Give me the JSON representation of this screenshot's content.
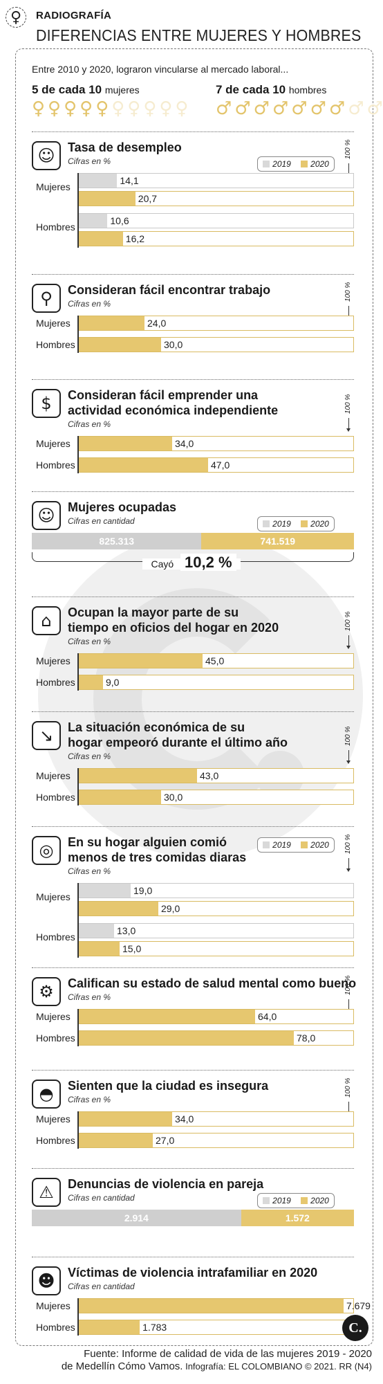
{
  "header": {
    "kicker": "RADIOGRAFÍA",
    "title": "DIFERENCIAS ENTRE MUJERES Y HOMBRES"
  },
  "intro": {
    "text": "Entre 2010 y 2020, lograron vincularse al mercado laboral...",
    "women": {
      "count_text": "5 de cada 10",
      "label": "mujeres",
      "filled": 5,
      "total": 10
    },
    "men": {
      "count_text": "7 de cada 10",
      "label": "hombres",
      "filled": 7,
      "total": 10
    }
  },
  "legend": {
    "y2019": "2019",
    "y2020": "2020"
  },
  "hundred_label": "100 %",
  "colors": {
    "y2019": "#d9d9d9",
    "y2020": "#e6c76f",
    "track2020": "#d9bb62",
    "ocupadas2019": "#cfcfcf",
    "ocupadas2020": "#e6c76f"
  },
  "row_labels": {
    "women": "Mujeres",
    "men": "Hombres"
  },
  "chart_data": [
    {
      "type": "bar",
      "title": "Tasa de desempleo",
      "subtitle": "Cifras en %",
      "icon": "unemployed-person-icon",
      "legend": true,
      "categories": [
        "Mujeres",
        "Hombres"
      ],
      "series": [
        {
          "name": "2019",
          "values": [
            14.1,
            10.6
          ],
          "labels": [
            "14,1",
            "10,6"
          ]
        },
        {
          "name": "2020",
          "values": [
            20.7,
            16.2
          ],
          "labels": [
            "20,7",
            "16,2"
          ]
        }
      ],
      "xlim": [
        0,
        100
      ]
    },
    {
      "type": "bar",
      "title": "Consideran fácil encontrar trabajo",
      "subtitle": "Cifras en %",
      "icon": "magnifier-search-icon",
      "categories": [
        "Mujeres",
        "Hombres"
      ],
      "values": [
        24.0,
        30.0
      ],
      "labels": [
        "24,0",
        "30,0"
      ],
      "xlim": [
        0,
        100
      ]
    },
    {
      "type": "bar",
      "title": "Consideran fácil emprender una",
      "title2": "actividad económica independiente",
      "subtitle": "Cifras en %",
      "icon": "money-network-icon",
      "categories": [
        "Mujeres",
        "Hombres"
      ],
      "values": [
        34.0,
        47.0
      ],
      "labels": [
        "34,0",
        "47,0"
      ],
      "xlim": [
        0,
        100
      ]
    },
    {
      "type": "bar",
      "title": "Mujeres ocupadas",
      "subtitle": "Cifras en cantidad",
      "icon": "employed-woman-icon",
      "legend": true,
      "categories": [
        "2019",
        "2020"
      ],
      "values": [
        825313,
        741519
      ],
      "labels": [
        "825.313",
        "741.519"
      ],
      "annotation_prefix": "Cayó",
      "annotation_value": "10,2 %"
    },
    {
      "type": "bar",
      "title": "Ocupan la mayor parte de su",
      "title2": "tiempo en oficios del hogar en 2020",
      "subtitle": "Cifras en %",
      "icon": "broom-icon",
      "categories": [
        "Mujeres",
        "Hombres"
      ],
      "values": [
        45.0,
        9.0
      ],
      "labels": [
        "45,0",
        "9,0"
      ],
      "xlim": [
        0,
        100
      ]
    },
    {
      "type": "bar",
      "title": "La situación económica de su",
      "title2": "hogar empeoró durante el último año",
      "subtitle": "Cifras en %",
      "icon": "declining-trend-icon",
      "categories": [
        "Mujeres",
        "Hombres"
      ],
      "values": [
        43.0,
        30.0
      ],
      "labels": [
        "43,0",
        "30,0"
      ],
      "xlim": [
        0,
        100
      ]
    },
    {
      "type": "bar",
      "title": "En su hogar alguien comió",
      "title2": "menos de tres comidas diaras",
      "subtitle": "Cifras en %",
      "icon": "meal-plate-icon",
      "legend": true,
      "categories": [
        "Mujeres",
        "Hombres"
      ],
      "series": [
        {
          "name": "2019",
          "values": [
            19.0,
            13.0
          ],
          "labels": [
            "19,0",
            "13,0"
          ]
        },
        {
          "name": "2020",
          "values": [
            29.0,
            15.0
          ],
          "labels": [
            "29,0",
            "15,0"
          ]
        }
      ],
      "xlim": [
        0,
        100
      ]
    },
    {
      "type": "bar",
      "title": "Califican su estado de salud mental como bueno",
      "subtitle": "Cifras en %",
      "icon": "head-gear-icon",
      "categories": [
        "Mujeres",
        "Hombres"
      ],
      "values": [
        64.0,
        78.0
      ],
      "labels": [
        "64,0",
        "78,0"
      ],
      "xlim": [
        0,
        100
      ]
    },
    {
      "type": "bar",
      "title": "Sienten que la ciudad es insegura",
      "subtitle": "Cifras en %",
      "icon": "police-cap-icon",
      "categories": [
        "Mujeres",
        "Hombres"
      ],
      "values": [
        34.0,
        27.0
      ],
      "labels": [
        "34,0",
        "27,0"
      ],
      "xlim": [
        0,
        100
      ]
    },
    {
      "type": "bar",
      "title": "Denuncias de violencia en pareja",
      "subtitle": "Cifras en cantidad",
      "icon": "violence-icon",
      "legend": true,
      "categories": [
        "2019",
        "2020"
      ],
      "values": [
        2914,
        1572
      ],
      "labels": [
        "2.914",
        "1.572"
      ]
    },
    {
      "type": "bar",
      "title": "Víctimas de violencia intrafamiliar en 2020",
      "subtitle": "Cifras en cantidad",
      "icon": "family-icon",
      "categories": [
        "Mujeres",
        "Hombres"
      ],
      "values": [
        7679,
        1783
      ],
      "labels": [
        "7.679",
        "1.783"
      ]
    }
  ],
  "footer": {
    "logo": "C.",
    "source_prefix": "Fuente:",
    "source_name": "Informe de calidad de vida de las mujeres 2019 - 2020",
    "source_line2": "de Medellín Cómo Vamos.",
    "credit": "Infografía: EL COLOMBIANO © 2021. RR (N4)"
  }
}
